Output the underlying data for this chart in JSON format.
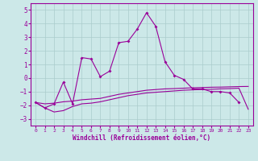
{
  "xlabel": "Windchill (Refroidissement éolien,°C)",
  "x": [
    0,
    1,
    2,
    3,
    4,
    5,
    6,
    7,
    8,
    9,
    10,
    11,
    12,
    13,
    14,
    15,
    16,
    17,
    18,
    19,
    20,
    21,
    22,
    23
  ],
  "line1": [
    -1.8,
    -2.2,
    -1.9,
    -0.3,
    -1.9,
    1.5,
    1.4,
    0.1,
    0.5,
    2.6,
    2.7,
    3.6,
    4.8,
    3.8,
    1.2,
    0.2,
    -0.1,
    -0.8,
    -0.8,
    -1.0,
    -1.0,
    -1.1,
    -1.8,
    null
  ],
  "line2": [
    -1.8,
    -1.9,
    -1.85,
    -1.75,
    -1.7,
    -1.6,
    -1.55,
    -1.5,
    -1.35,
    -1.2,
    -1.1,
    -1.0,
    -0.9,
    -0.85,
    -0.8,
    -0.78,
    -0.75,
    -0.72,
    -0.7,
    -0.68,
    -0.67,
    -0.65,
    -0.63,
    -0.62
  ],
  "line3": [
    -1.8,
    -2.2,
    -2.5,
    -2.4,
    -2.1,
    -1.9,
    -1.85,
    -1.75,
    -1.6,
    -1.45,
    -1.3,
    -1.2,
    -1.1,
    -1.05,
    -1.0,
    -0.95,
    -0.9,
    -0.87,
    -0.85,
    -0.83,
    -0.8,
    -0.78,
    -0.75,
    -2.3
  ],
  "ylim": [
    -3.5,
    5.5
  ],
  "xlim": [
    -0.5,
    23.5
  ],
  "yticks": [
    -3,
    -2,
    -1,
    0,
    1,
    2,
    3,
    4,
    5
  ],
  "xticks": [
    0,
    1,
    2,
    3,
    4,
    5,
    6,
    7,
    8,
    9,
    10,
    11,
    12,
    13,
    14,
    15,
    16,
    17,
    18,
    19,
    20,
    21,
    22,
    23
  ],
  "line_color": "#990099",
  "bg_color": "#cce8e8",
  "grid_color": "#aacccc",
  "tick_fontsize": 5,
  "xlabel_fontsize": 5.5,
  "linewidth": 0.8,
  "marker_size": 2.0
}
